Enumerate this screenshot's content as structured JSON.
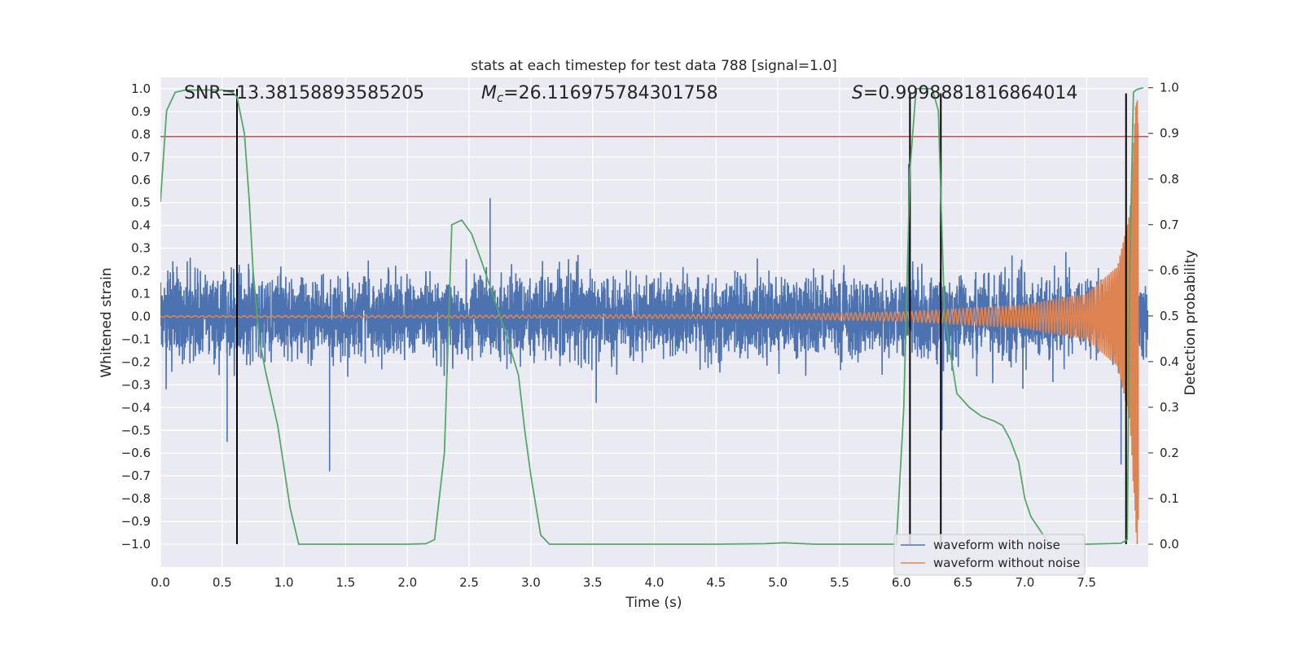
{
  "chart_data": {
    "type": "line",
    "title": "stats at each timestep for test data 788 [signal=1.0]",
    "xlabel": "Time (s)",
    "ylabel": "Whitened strain",
    "y2label": "Detection probability",
    "xlim": [
      0,
      8.0
    ],
    "ylim": [
      -1.1,
      1.05
    ],
    "y2lim": [
      -0.05,
      1.0227
    ],
    "x_ticks": [
      0.0,
      0.5,
      1.0,
      1.5,
      2.0,
      2.5,
      3.0,
      3.5,
      4.0,
      4.5,
      5.0,
      5.5,
      6.0,
      6.5,
      7.0,
      7.5
    ],
    "x_tick_labels": [
      "0.0",
      "0.5",
      "1.0",
      "1.5",
      "2.0",
      "2.5",
      "3.0",
      "3.5",
      "4.0",
      "4.5",
      "5.0",
      "5.5",
      "6.0",
      "6.5",
      "7.0",
      "7.5"
    ],
    "y_ticks": [
      1.0,
      0.9,
      0.8,
      0.7,
      0.6,
      0.5,
      0.4,
      0.3,
      0.2,
      0.1,
      0.0,
      -0.1,
      -0.2,
      -0.3,
      -0.4,
      -0.5,
      -0.6,
      -0.7,
      -0.8,
      -0.9,
      -1.0
    ],
    "y_tick_labels": [
      "1.0",
      "0.9",
      "0.8",
      "0.7",
      "0.6",
      "0.5",
      "0.4",
      "0.3",
      "0.2",
      "0.1",
      "0.0",
      "−0.1",
      "−0.2",
      "−0.3",
      "−0.4",
      "−0.5",
      "−0.6",
      "−0.7",
      "−0.8",
      "−0.9",
      "−1.0"
    ],
    "y2_ticks": [
      1.0,
      0.9,
      0.8,
      0.7,
      0.6,
      0.5,
      0.4,
      0.3,
      0.2,
      0.1,
      0.0
    ],
    "y2_tick_labels": [
      "1.0",
      "0.9",
      "0.8",
      "0.7",
      "0.6",
      "0.5",
      "0.4",
      "0.3",
      "0.2",
      "0.1",
      "0.0"
    ],
    "grid": true,
    "legend": "bottom-right",
    "annotations": {
      "snr": "SNR=13.38158893585205",
      "mc_symbol": "M",
      "mc_sub": "c",
      "mc_value": "=26.116975784301758",
      "s_symbol": "S",
      "s_value": "=0.9998881816864014"
    },
    "threshold": {
      "y": 0.79,
      "color": "#c44e52"
    },
    "vertical_lines": [
      {
        "x": 0.62,
        "ymin": -1.0,
        "ymax": 1.0
      },
      {
        "x": 6.07,
        "ymin": -1.0,
        "ymax": 0.98
      },
      {
        "x": 6.32,
        "ymin": -1.0,
        "ymax": 0.98
      },
      {
        "x": 7.82,
        "ymin": -1.0,
        "ymax": 0.98
      }
    ],
    "series": [
      {
        "name": "waveform with noise",
        "color": "#4c72b0",
        "description": "dense noise, typical amplitude ~0.3, peaks to ~0.5, outlier -0.68 at 1.37 s",
        "x_range": [
          0,
          8.0
        ],
        "typical_amplitude": 0.3,
        "spikes": [
          {
            "x": 1.37,
            "y": -0.68
          },
          {
            "x": 0.54,
            "y": -0.55
          },
          {
            "x": 2.67,
            "y": 0.52
          },
          {
            "x": 6.06,
            "y": 0.67
          },
          {
            "x": 6.33,
            "y": -0.5
          },
          {
            "x": 7.78,
            "y": -0.65
          }
        ]
      },
      {
        "name": "waveform without noise",
        "color": "#dd8452",
        "description": "chirp with growing amplitude and frequency, merger near 7.9 s",
        "x_range": [
          0,
          7.92
        ],
        "amplitude_points": [
          [
            0,
            0.003
          ],
          [
            3.0,
            0.006
          ],
          [
            5.0,
            0.01
          ],
          [
            6.0,
            0.02
          ],
          [
            7.0,
            0.05
          ],
          [
            7.5,
            0.1
          ],
          [
            7.75,
            0.22
          ],
          [
            7.85,
            0.45
          ],
          [
            7.9,
            0.95
          ]
        ]
      },
      {
        "name": "detection probability",
        "color": "#55a868",
        "axis": "right",
        "x": [
          0,
          0.05,
          0.12,
          0.2,
          0.3,
          0.4,
          0.5,
          0.58,
          0.62,
          0.68,
          0.72,
          0.75,
          0.8,
          0.85,
          0.95,
          1.05,
          1.12,
          1.2,
          1.5,
          2.0,
          2.15,
          2.22,
          2.3,
          2.36,
          2.44,
          2.52,
          2.6,
          2.7,
          2.8,
          2.9,
          2.95,
          3.0,
          3.08,
          3.15,
          3.5,
          4.0,
          4.5,
          4.9,
          5.05,
          5.3,
          5.6,
          5.96,
          6.02,
          6.07,
          6.12,
          6.16,
          6.25,
          6.3,
          6.35,
          6.45,
          6.55,
          6.65,
          6.75,
          6.82,
          6.88,
          6.95,
          7.0,
          7.05,
          7.2,
          7.5,
          7.78,
          7.83,
          7.85,
          7.88,
          7.9,
          7.93,
          7.96
        ],
        "values": [
          0.75,
          0.95,
          0.99,
          0.995,
          0.995,
          0.995,
          0.995,
          0.99,
          0.98,
          0.9,
          0.75,
          0.6,
          0.45,
          0.38,
          0.26,
          0.08,
          0.0,
          0.0,
          0.0,
          0.0,
          0.001,
          0.01,
          0.2,
          0.7,
          0.71,
          0.68,
          0.62,
          0.54,
          0.46,
          0.37,
          0.25,
          0.15,
          0.02,
          0.0,
          0.0,
          0.0,
          0.0,
          0.001,
          0.003,
          0.0,
          0.0,
          0.0,
          0.3,
          0.82,
          0.998,
          0.998,
          0.998,
          0.95,
          0.5,
          0.33,
          0.3,
          0.28,
          0.27,
          0.26,
          0.23,
          0.18,
          0.1,
          0.06,
          0.0,
          0.0,
          0.002,
          0.01,
          0.6,
          0.99,
          0.995,
          0.998,
          1.0
        ]
      }
    ]
  }
}
